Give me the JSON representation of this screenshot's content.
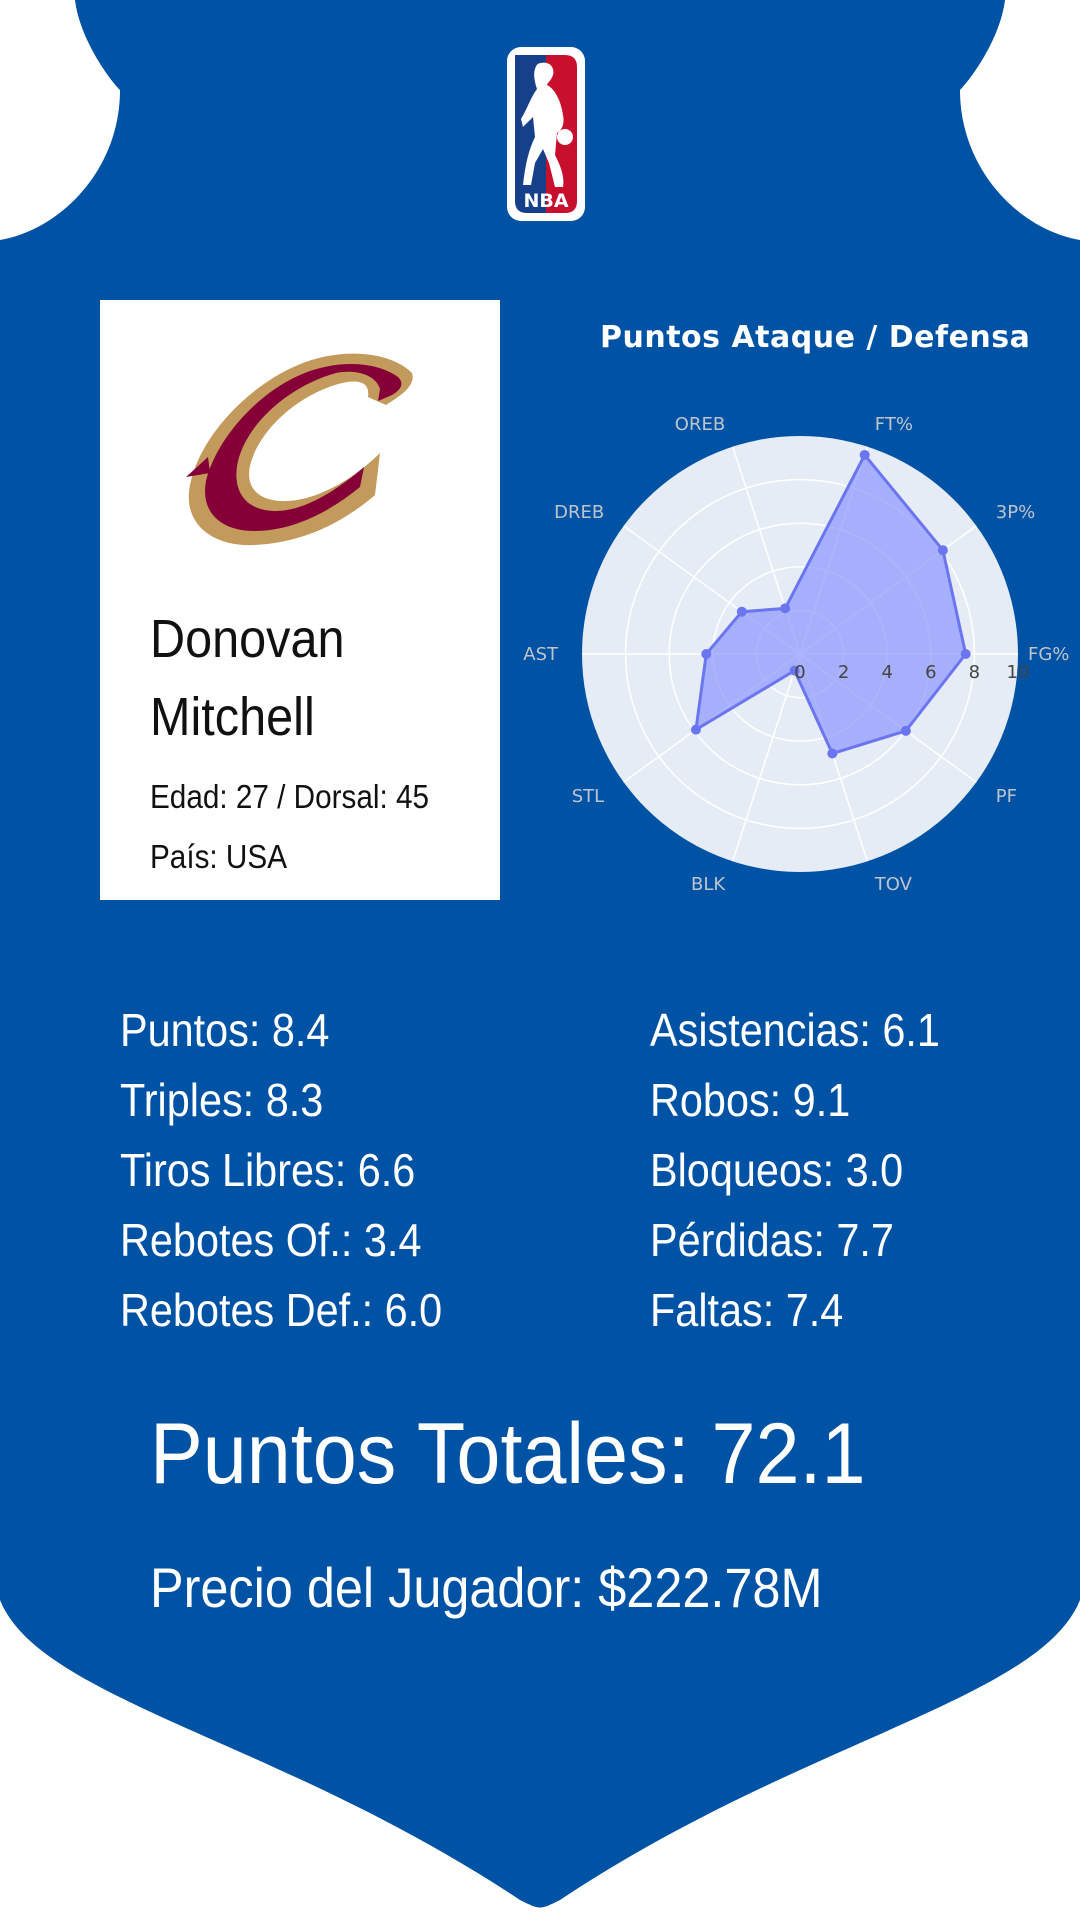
{
  "colors": {
    "shield_blue": "#0052A5",
    "cavs_wine": "#860038",
    "cavs_gold": "#C29A5B",
    "nba_red": "#C8102E",
    "nba_blue": "#17408B"
  },
  "logo": {
    "text": "NBA"
  },
  "player": {
    "name_line1": "Donovan",
    "name_line2": "Mitchell",
    "age_line": "Edad: 27 / Dorsal: 45",
    "country_line": "País: USA"
  },
  "chart_title": "Puntos Ataque / Defensa",
  "chart_data": {
    "type": "radar",
    "categories": [
      "FG%",
      "3P%",
      "FT%",
      "OREB",
      "DREB",
      "AST",
      "STL",
      "BLK",
      "TOV",
      "PF"
    ],
    "values": [
      7.6,
      8.1,
      9.6,
      2.2,
      3.3,
      4.3,
      5.9,
      0.8,
      4.8,
      6.0
    ],
    "rlim": [
      0,
      10
    ],
    "tick_labels": [
      "0",
      "2",
      "4",
      "6",
      "8",
      "10"
    ],
    "tick_values": [
      0,
      2,
      4,
      6,
      8,
      10
    ],
    "fill_color": "#8C96FF",
    "line_color": "#6C75F0",
    "grid": true
  },
  "stats_left": [
    "Puntos: 8.4",
    "Triples: 8.3",
    "Tiros Libres: 6.6",
    "Rebotes Of.: 3.4",
    "Rebotes Def.: 6.0"
  ],
  "stats_right": [
    "Asistencias: 6.1",
    "Robos: 9.1",
    "Bloqueos: 3.0",
    "Pérdidas: 7.7",
    "Faltas: 7.4"
  ],
  "total_points": "Puntos Totales: 72.1",
  "price": "Precio del Jugador: $222.78M"
}
